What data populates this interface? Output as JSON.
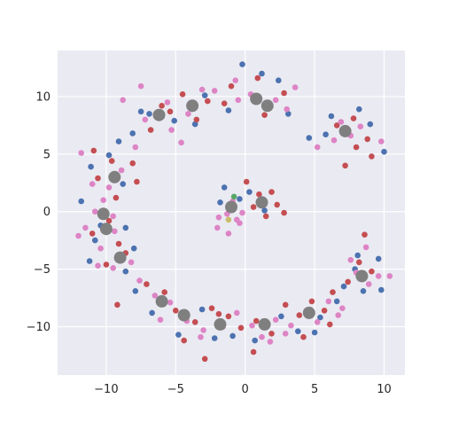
{
  "chart_data": {
    "type": "scatter",
    "title": "",
    "xlabel": "",
    "ylabel": "",
    "xlim": [
      -13.5,
      11.5
    ],
    "ylim": [
      -14.2,
      14
    ],
    "xticks": [
      -10,
      -5,
      0,
      5,
      10
    ],
    "yticks": [
      -10,
      -5,
      0,
      5,
      10
    ],
    "xtick_labels": [
      "−10",
      "−5",
      "0",
      "5",
      "10"
    ],
    "ytick_labels": [
      "−10",
      "−5",
      "0",
      "5",
      "10"
    ],
    "grid": true,
    "legend": "none",
    "background": "#eaeaf2",
    "clusters": [
      {
        "x": -6.2,
        "y": 8.4
      },
      {
        "x": -3.8,
        "y": 9.2
      },
      {
        "x": 0.8,
        "y": 9.8
      },
      {
        "x": 1.6,
        "y": 9.2
      },
      {
        "x": 7.2,
        "y": 7.0
      },
      {
        "x": -9.4,
        "y": 3.0
      },
      {
        "x": -10.2,
        "y": -0.2
      },
      {
        "x": -10.0,
        "y": -1.5
      },
      {
        "x": -9.0,
        "y": -4.0
      },
      {
        "x": -6.0,
        "y": -7.8
      },
      {
        "x": -4.4,
        "y": -9.0
      },
      {
        "x": -1.8,
        "y": -9.8
      },
      {
        "x": 1.4,
        "y": -9.8
      },
      {
        "x": 4.6,
        "y": -8.8
      },
      {
        "x": 8.4,
        "y": -5.6
      },
      {
        "x": -1.0,
        "y": 0.4
      },
      {
        "x": 1.2,
        "y": 0.8
      }
    ],
    "series": [
      {
        "color": "#4c72b0",
        "values": [
          [
            -5.1,
            7.9
          ],
          [
            -0.2,
            12.8
          ],
          [
            1.2,
            12.0
          ],
          [
            2.4,
            11.4
          ],
          [
            -2.9,
            10.1
          ],
          [
            -8.1,
            6.8
          ],
          [
            -7.5,
            8.7
          ],
          [
            8.2,
            8.9
          ],
          [
            9.0,
            7.6
          ],
          [
            6.2,
            8.3
          ],
          [
            5.8,
            6.7
          ],
          [
            -9.1,
            6.1
          ],
          [
            -11.1,
            3.9
          ],
          [
            -8.8,
            2.4
          ],
          [
            -11.8,
            0.9
          ],
          [
            -10.8,
            -2.5
          ],
          [
            -8.6,
            -1.4
          ],
          [
            -11.2,
            -4.3
          ],
          [
            -8.6,
            -5.2
          ],
          [
            -7.9,
            -6.9
          ],
          [
            -6.7,
            -8.8
          ],
          [
            -4.8,
            -10.7
          ],
          [
            -3.1,
            -8.5
          ],
          [
            -0.9,
            -10.8
          ],
          [
            0.7,
            -11.2
          ],
          [
            2.6,
            -9.1
          ],
          [
            3.8,
            -10.4
          ],
          [
            5.4,
            -9.2
          ],
          [
            6.6,
            -7.8
          ],
          [
            8.5,
            -6.9
          ],
          [
            9.6,
            -4.1
          ],
          [
            8.1,
            -3.8
          ],
          [
            7.9,
            -5.0
          ],
          [
            -1.5,
            2.1
          ],
          [
            -0.4,
            1.1
          ],
          [
            1.4,
            0.1
          ],
          [
            -1.8,
            0.8
          ],
          [
            0.3,
            1.7
          ],
          [
            -6.9,
            8.5
          ],
          [
            4.6,
            6.4
          ],
          [
            -10.4,
            -1.2
          ],
          [
            -3.6,
            7.6
          ],
          [
            -1.2,
            8.8
          ],
          [
            3.1,
            8.5
          ],
          [
            10.0,
            5.2
          ],
          [
            -9.8,
            4.9
          ],
          [
            -8.0,
            -3.2
          ],
          [
            -2.2,
            -11.0
          ],
          [
            5.0,
            -10.5
          ],
          [
            7.1,
            -6.5
          ],
          [
            9.8,
            -6.8
          ]
        ]
      },
      {
        "color": "#c44e52",
        "values": [
          [
            -6.0,
            9.2
          ],
          [
            -4.5,
            10.2
          ],
          [
            -2.7,
            9.6
          ],
          [
            -1.0,
            10.9
          ],
          [
            0.9,
            11.6
          ],
          [
            2.8,
            10.3
          ],
          [
            -3.5,
            8.0
          ],
          [
            -6.8,
            7.1
          ],
          [
            -5.4,
            8.7
          ],
          [
            7.8,
            8.1
          ],
          [
            6.6,
            7.5
          ],
          [
            7.2,
            4.0
          ],
          [
            8.8,
            6.3
          ],
          [
            9.1,
            4.8
          ],
          [
            -9.6,
            4.4
          ],
          [
            -8.1,
            4.2
          ],
          [
            -10.6,
            2.9
          ],
          [
            -9.3,
            1.2
          ],
          [
            -9.8,
            -0.8
          ],
          [
            -11.0,
            -1.9
          ],
          [
            -9.1,
            -2.8
          ],
          [
            -10.0,
            -4.6
          ],
          [
            -8.6,
            -3.6
          ],
          [
            -7.1,
            -6.3
          ],
          [
            -5.8,
            -7.0
          ],
          [
            -5.0,
            -8.6
          ],
          [
            -3.6,
            -9.6
          ],
          [
            -2.4,
            -8.4
          ],
          [
            -1.2,
            -9.1
          ],
          [
            -0.3,
            -10.1
          ],
          [
            0.8,
            -9.5
          ],
          [
            1.9,
            -10.6
          ],
          [
            2.9,
            -8.1
          ],
          [
            3.9,
            -9.0
          ],
          [
            4.8,
            -7.8
          ],
          [
            5.7,
            -8.6
          ],
          [
            6.3,
            -7.0
          ],
          [
            7.4,
            -6.1
          ],
          [
            8.2,
            -4.4
          ],
          [
            9.1,
            -5.2
          ],
          [
            8.6,
            -2.0
          ],
          [
            0.1,
            2.6
          ],
          [
            1.0,
            1.5
          ],
          [
            1.9,
            1.7
          ],
          [
            2.3,
            0.6
          ],
          [
            1.5,
            -0.4
          ],
          [
            2.8,
            -0.1
          ],
          [
            0.6,
            0.4
          ],
          [
            -1.9,
            -8.9
          ],
          [
            -4.4,
            -11.2
          ],
          [
            -2.9,
            -12.8
          ],
          [
            0.6,
            -12.2
          ],
          [
            4.2,
            -10.9
          ],
          [
            -9.2,
            -8.1
          ],
          [
            6.1,
            -9.8
          ],
          [
            -1.5,
            9.4
          ],
          [
            1.4,
            8.4
          ],
          [
            -7.8,
            2.6
          ],
          [
            -10.9,
            5.3
          ],
          [
            8.0,
            5.6
          ]
        ]
      },
      {
        "color": "#dd84c5",
        "values": [
          [
            -7.2,
            8.0
          ],
          [
            -5.6,
            9.5
          ],
          [
            -4.1,
            8.5
          ],
          [
            -2.2,
            10.5
          ],
          [
            -0.5,
            9.7
          ],
          [
            0.4,
            10.2
          ],
          [
            2.2,
            9.7
          ],
          [
            3.0,
            8.9
          ],
          [
            -4.6,
            6.0
          ],
          [
            -7.9,
            5.6
          ],
          [
            -3.1,
            10.6
          ],
          [
            -7.5,
            10.9
          ],
          [
            6.9,
            7.8
          ],
          [
            7.6,
            6.6
          ],
          [
            8.3,
            7.4
          ],
          [
            6.4,
            6.2
          ],
          [
            5.2,
            5.6
          ],
          [
            -8.9,
            3.6
          ],
          [
            -9.8,
            2.1
          ],
          [
            -10.2,
            1.0
          ],
          [
            -10.8,
            0.0
          ],
          [
            -9.5,
            -0.4
          ],
          [
            -11.5,
            -1.4
          ],
          [
            -9.4,
            -1.7
          ],
          [
            -10.4,
            -3.2
          ],
          [
            -9.5,
            -4.9
          ],
          [
            -8.2,
            -4.4
          ],
          [
            -12.0,
            -2.1
          ],
          [
            -6.5,
            -7.3
          ],
          [
            -5.4,
            -7.9
          ],
          [
            -4.2,
            -9.5
          ],
          [
            -3.0,
            -10.3
          ],
          [
            -1.6,
            -10.0
          ],
          [
            -0.6,
            -8.8
          ],
          [
            0.5,
            -9.9
          ],
          [
            1.2,
            -10.9
          ],
          [
            2.2,
            -9.4
          ],
          [
            3.3,
            -9.9
          ],
          [
            4.4,
            -8.6
          ],
          [
            5.2,
            -9.6
          ],
          [
            6.0,
            -7.8
          ],
          [
            7.0,
            -8.4
          ],
          [
            8.0,
            -5.3
          ],
          [
            8.9,
            -6.3
          ],
          [
            9.6,
            -5.6
          ],
          [
            10.4,
            -5.6
          ],
          [
            7.6,
            -4.2
          ],
          [
            -1.3,
            -0.2
          ],
          [
            -0.6,
            -0.7
          ],
          [
            -1.9,
            -0.5
          ],
          [
            -0.9,
            0.9
          ],
          [
            -0.2,
            -0.1
          ],
          [
            -2.0,
            -1.4
          ],
          [
            -1.2,
            -1.9
          ],
          [
            -0.4,
            -1.0
          ],
          [
            -3.2,
            -10.9
          ],
          [
            1.8,
            -11.3
          ],
          [
            -6.1,
            -9.4
          ],
          [
            2.9,
            -10.6
          ],
          [
            -0.7,
            11.4
          ],
          [
            -11.0,
            2.4
          ],
          [
            -10.6,
            -4.7
          ],
          [
            8.7,
            -3.1
          ],
          [
            -8.8,
            9.7
          ],
          [
            6.7,
            -9.0
          ],
          [
            -5.3,
            7.1
          ],
          [
            3.6,
            10.8
          ],
          [
            -11.8,
            5.1
          ],
          [
            9.8,
            6.1
          ],
          [
            -7.6,
            -6.0
          ]
        ]
      },
      {
        "color": "#55a868",
        "values": [
          [
            -0.8,
            1.3
          ]
        ]
      },
      {
        "color": "#c9bc6a",
        "values": [
          [
            -1.2,
            -0.7
          ]
        ]
      }
    ]
  }
}
